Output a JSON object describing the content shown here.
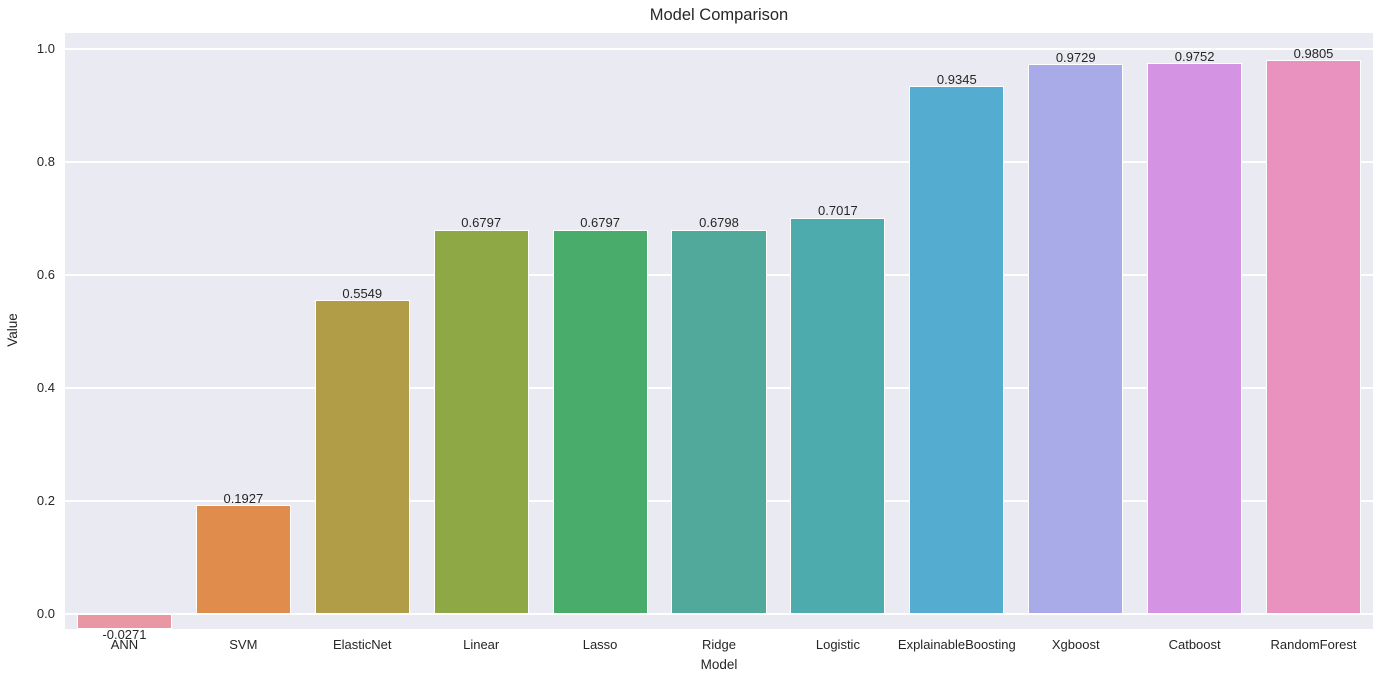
{
  "chart_data": {
    "type": "bar",
    "title": "Model Comparison",
    "xlabel": "Model",
    "ylabel": "Value",
    "categories": [
      "ANN",
      "SVM",
      "ElasticNet",
      "Linear",
      "Lasso",
      "Ridge",
      "Logistic",
      "ExplainableBoosting",
      "Xgboost",
      "Catboost",
      "RandomForest"
    ],
    "values": [
      -0.0271,
      0.1927,
      0.5549,
      0.6797,
      0.6797,
      0.6798,
      0.7017,
      0.9345,
      0.9729,
      0.9752,
      0.9805
    ],
    "value_labels": [
      "-0.0271",
      "0.1927",
      "0.5549",
      "0.6797",
      "0.6797",
      "0.6798",
      "0.7017",
      "0.9345",
      "0.9729",
      "0.9752",
      "0.9805"
    ],
    "bar_colors": [
      "#e997a3",
      "#e08c4c",
      "#b19c48",
      "#8ea845",
      "#49ac6b",
      "#50a99a",
      "#4eabad",
      "#54add1",
      "#a9abe9",
      "#d593e4",
      "#e991bf"
    ],
    "yticks": [
      0.0,
      0.2,
      0.4,
      0.6,
      0.8,
      1.0
    ],
    "ytick_labels": [
      "0.0",
      "0.2",
      "0.4",
      "0.6",
      "0.8",
      "1.0"
    ],
    "ylim": [
      -0.0265,
      1.0283
    ],
    "grid": true,
    "legend_position": "none",
    "styles": {
      "plot_bg": "#eaeaf2",
      "grid_color": "#ffffff",
      "text_color": "#262626",
      "bar_edge_color": "#ffffff",
      "bar_width_fraction": 0.8
    }
  }
}
